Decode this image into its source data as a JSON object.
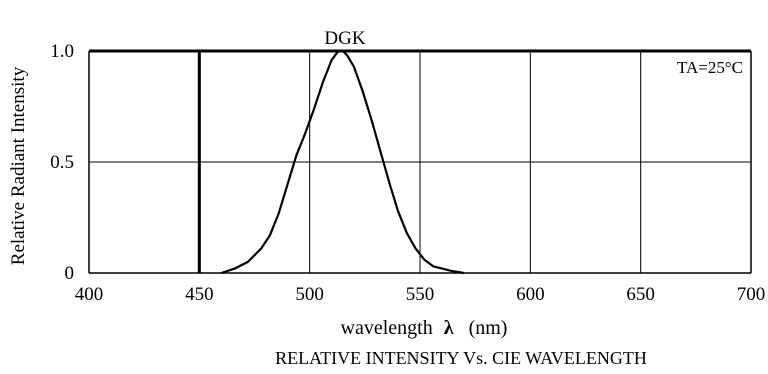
{
  "chart_data": {
    "type": "line",
    "title": "RELATIVE INTENSITY Vs. CIE WAVELENGTH",
    "xlabel_text": "wavelength",
    "xlabel_symbol": "λ",
    "xlabel_unit": "(nm)",
    "ylabel": "Relative Radiant Intensity",
    "xlim": [
      400,
      700
    ],
    "ylim": [
      0,
      1.0
    ],
    "x_ticks": [
      400,
      450,
      500,
      550,
      600,
      650,
      700
    ],
    "x_tick_labels": [
      "400",
      "450",
      "500",
      "550",
      "600",
      "650",
      "700"
    ],
    "y_ticks": [
      0,
      0.5,
      1.0
    ],
    "y_tick_labels": [
      "0",
      "0.5",
      "1.0"
    ],
    "grid": true,
    "annotations": [
      {
        "text": "TA=25°C",
        "position": "top-right"
      }
    ],
    "series": [
      {
        "name": "DGK",
        "color": "#000000",
        "x": [
          460,
          466,
          472,
          478,
          482,
          486,
          490,
          494,
          498,
          502,
          506,
          510,
          513,
          515,
          517,
          520,
          524,
          528,
          532,
          536,
          540,
          544,
          548,
          552,
          556,
          560,
          564,
          570
        ],
        "y": [
          0.0,
          0.02,
          0.05,
          0.11,
          0.17,
          0.27,
          0.4,
          0.53,
          0.63,
          0.74,
          0.86,
          0.96,
          1.0,
          1.0,
          0.98,
          0.93,
          0.82,
          0.69,
          0.55,
          0.41,
          0.28,
          0.18,
          0.11,
          0.06,
          0.03,
          0.02,
          0.01,
          0.0
        ]
      }
    ],
    "reference_line_x": 450
  }
}
